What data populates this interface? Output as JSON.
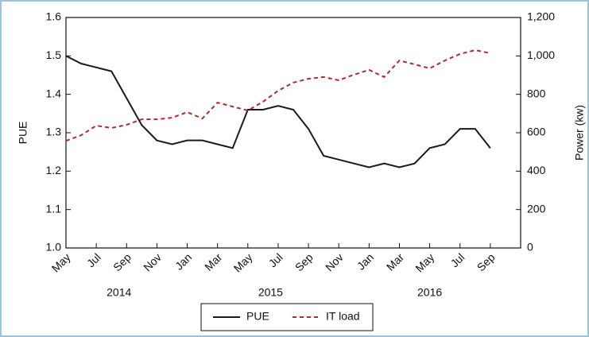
{
  "chart_data": {
    "type": "line",
    "categories": [
      "May",
      null,
      "Jul",
      null,
      "Sep",
      null,
      "Nov",
      null,
      "Jan",
      null,
      "Mar",
      null,
      "May",
      null,
      "Jul",
      null,
      "Sep",
      null,
      "Nov",
      null,
      "Jan",
      null,
      "Mar",
      null,
      "May",
      null,
      "Jul",
      null,
      "Sep"
    ],
    "years": [
      "2014",
      "2015",
      "2016"
    ],
    "y_label": "PUE",
    "y2_label": "Power (kw)",
    "ylim": [
      1.0,
      1.6
    ],
    "yticks": [
      {
        "value": 1.0,
        "label": "1.0"
      },
      1.1,
      1.2,
      1.3,
      1.4,
      1.5,
      1.6
    ],
    "y2lim": [
      0,
      1200
    ],
    "y2ticks": [
      0,
      200,
      400,
      600,
      800,
      {
        "value": 1000,
        "label": "1,000"
      },
      {
        "value": 1200,
        "label": "1,200"
      }
    ],
    "series": [
      {
        "name": "PUE",
        "color": "#1a1a1a",
        "dash": false,
        "values": [
          1.5,
          1.48,
          1.47,
          1.46,
          1.39,
          1.32,
          1.28,
          1.27,
          1.28,
          1.28,
          1.27,
          1.26,
          1.36,
          1.36,
          1.37,
          1.36,
          1.31,
          1.24,
          1.23,
          1.22,
          1.21,
          1.22,
          1.21,
          1.22,
          1.26,
          1.27,
          1.31,
          1.31,
          1.26
        ]
      },
      {
        "name": "IT load",
        "color": "#b5282f",
        "dash": true,
        "axis": "y2",
        "values": [
          558,
          587,
          637,
          625,
          641,
          670,
          670,
          678,
          707,
          674,
          757,
          736,
          716,
          761,
          819,
          861,
          881,
          890,
          873,
          902,
          927,
          890,
          976,
          956,
          935,
          976,
          1010,
          1030,
          1014
        ]
      }
    ]
  }
}
